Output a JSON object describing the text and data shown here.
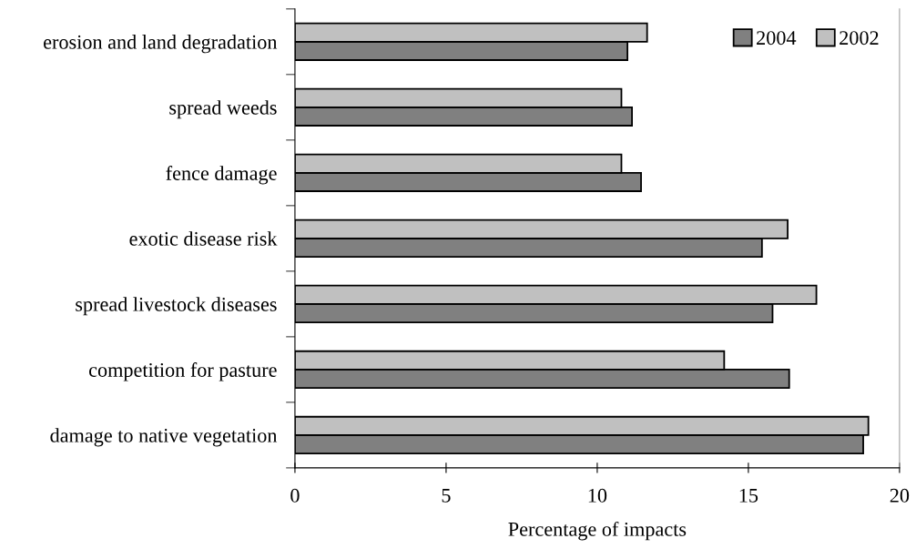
{
  "chart_data": {
    "type": "bar",
    "orientation": "horizontal",
    "xlabel": "Percentage of impacts",
    "categories": [
      "erosion and land degradation",
      "spread weeds",
      "fence damage",
      "exotic disease risk",
      "spread livestock diseases",
      "competition for pasture",
      "damage to native vegetation"
    ],
    "series": [
      {
        "name": "2004",
        "color": "#808080",
        "values": [
          11.0,
          11.15,
          11.45,
          15.45,
          15.8,
          16.35,
          18.8
        ]
      },
      {
        "name": "2002",
        "color": "#c0c0c0",
        "values": [
          11.65,
          10.8,
          10.8,
          16.3,
          17.25,
          14.2,
          18.97
        ]
      }
    ],
    "xlim": [
      0,
      20
    ],
    "xticks": [
      0,
      5,
      10,
      15,
      20
    ],
    "grid": false,
    "legend": "top right"
  }
}
